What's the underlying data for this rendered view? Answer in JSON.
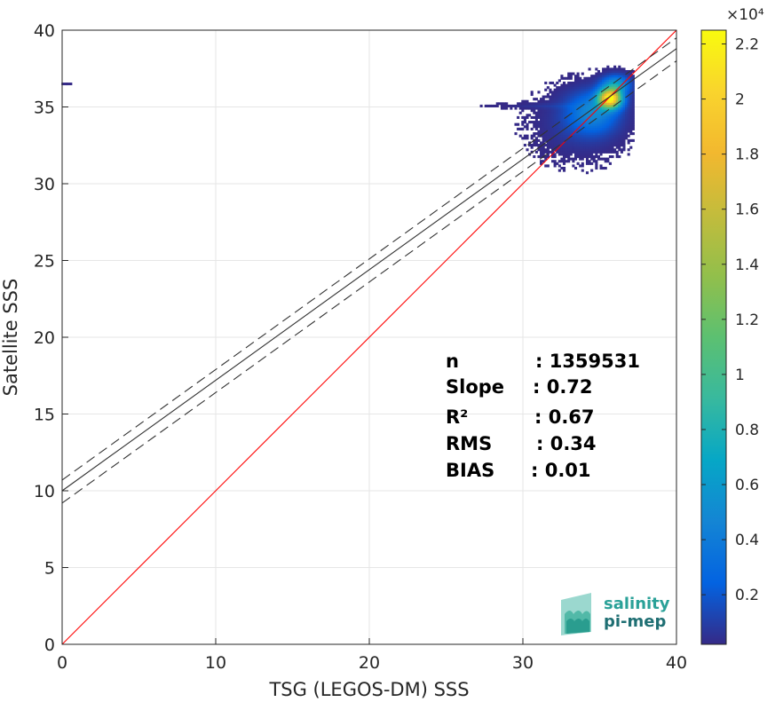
{
  "chart_data": {
    "type": "heatmap",
    "xlabel": "TSG (LEGOS-DM) SSS",
    "ylabel": "Satellite SSS",
    "xlim": [
      0,
      40
    ],
    "ylim": [
      0,
      40
    ],
    "xticks": [
      0,
      10,
      20,
      30,
      40
    ],
    "yticks": [
      0,
      5,
      10,
      15,
      20,
      25,
      30,
      35,
      40
    ],
    "grid": true,
    "colorbar": {
      "multiplier_label": "×10⁴",
      "range": [
        0.02,
        2.25
      ],
      "ticks": [
        0.2,
        0.4,
        0.6,
        0.8,
        1,
        1.2,
        1.4,
        1.6,
        1.8,
        2,
        2.2
      ],
      "tick_labels": [
        "0.2",
        "0.4",
        "0.6",
        "0.8",
        "1",
        "1.2",
        "1.4",
        "1.6",
        "1.8",
        "2",
        "2.2"
      ],
      "colormap": "parula",
      "position": "right"
    },
    "lines": [
      {
        "type": "one-to-one",
        "color": "#ff0000",
        "points": [
          [
            0,
            0
          ],
          [
            40,
            40
          ]
        ]
      },
      {
        "type": "regression",
        "style": "solid",
        "color": "#333333",
        "points": [
          [
            0,
            10.0
          ],
          [
            40,
            38.8
          ]
        ]
      },
      {
        "type": "regression-upper",
        "style": "dashed",
        "color": "#333333",
        "points": [
          [
            0,
            10.7
          ],
          [
            40,
            39.5
          ]
        ]
      },
      {
        "type": "regression-lower",
        "style": "dashed",
        "color": "#333333",
        "points": [
          [
            0,
            9.2
          ],
          [
            40,
            38.0
          ]
        ]
      }
    ],
    "density_clusters": [
      {
        "x": 35.6,
        "y": 35.5,
        "sx": 0.5,
        "sy": 0.42,
        "peak": 2.2
      },
      {
        "x": 34.5,
        "y": 34.6,
        "sx": 1.1,
        "sy": 0.9,
        "peak": 0.45
      },
      {
        "x": 33.5,
        "y": 33.8,
        "sx": 1.7,
        "sy": 1.3,
        "peak": 0.08
      },
      {
        "x": 31.6,
        "y": 35.0,
        "sx": 2.0,
        "sy": 0.12,
        "peak": 0.05
      },
      {
        "x": 36.0,
        "y": 36.4,
        "sx": 0.6,
        "sy": 0.4,
        "peak": 0.6
      }
    ],
    "outliers": [
      [
        0.3,
        36.5
      ],
      [
        0.6,
        36.5
      ]
    ],
    "stats": [
      {
        "label": "n",
        "value": ": 1359531"
      },
      {
        "label": "Slope",
        "value": ": 0.72"
      },
      {
        "label": "R²",
        "value": ": 0.67"
      },
      {
        "label": "RMS",
        "value": ": 0.34"
      },
      {
        "label": "BIAS",
        "value": ": 0.01"
      }
    ]
  },
  "logo": {
    "line1": "salinity",
    "line2": "pi-mep",
    "color": "#2aa198"
  }
}
